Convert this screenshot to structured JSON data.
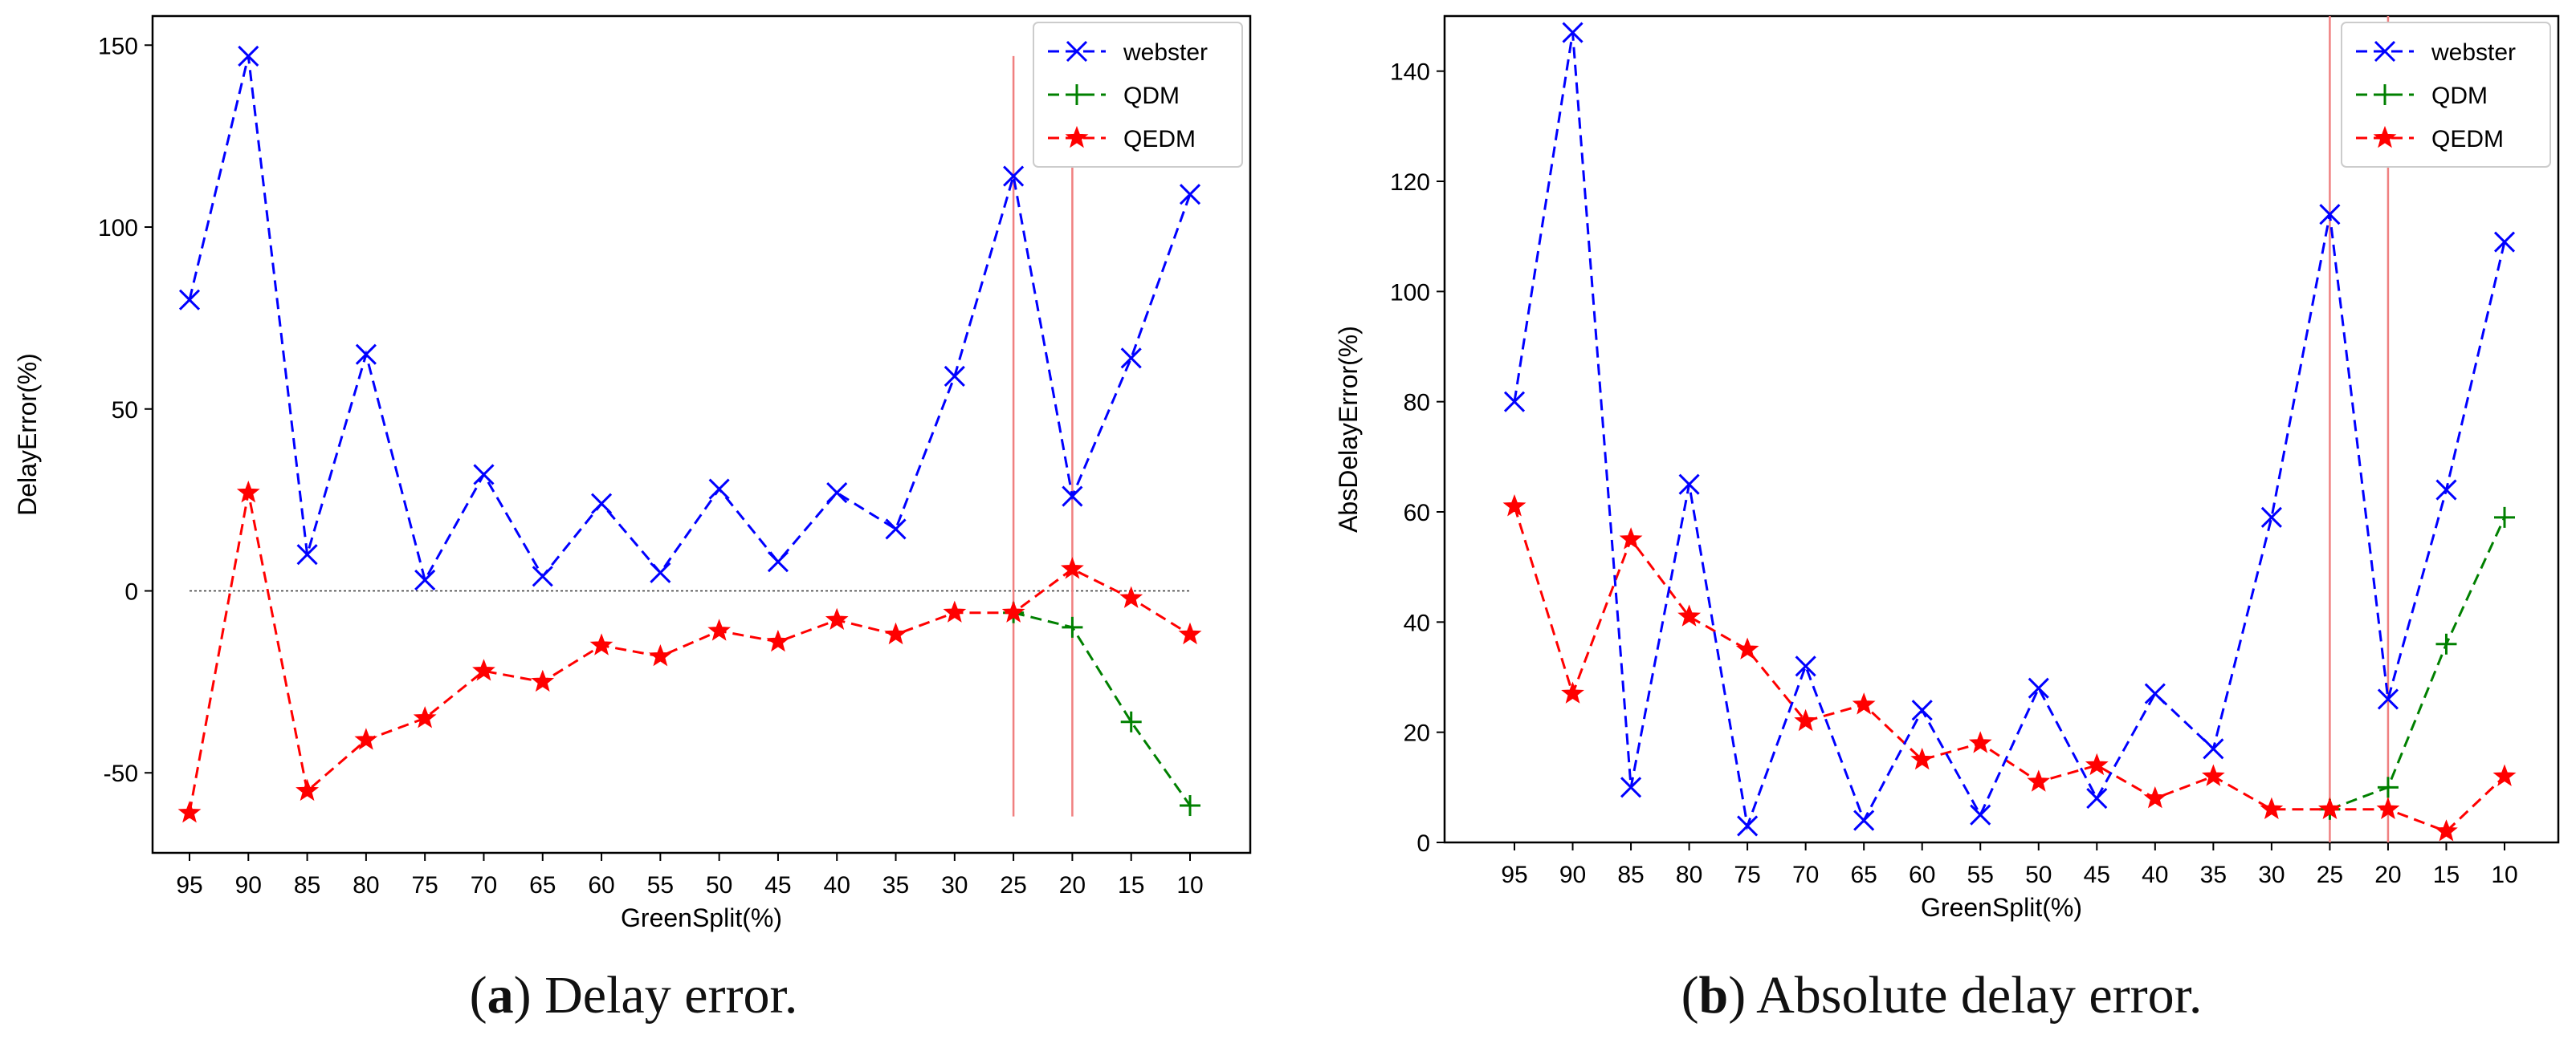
{
  "chart_data": [
    {
      "type": "line",
      "categories": [
        "95",
        "90",
        "85",
        "80",
        "75",
        "70",
        "65",
        "60",
        "55",
        "50",
        "45",
        "40",
        "35",
        "30",
        "25",
        "20",
        "15",
        "10"
      ],
      "xlabel": "GreenSplit(%)",
      "ylabel": "DelayError(%)",
      "ylim": [
        -72,
        158
      ],
      "yticks": [
        -50,
        0,
        50,
        100,
        150
      ],
      "reference_line": 0,
      "vertical_markers": [
        "25",
        "20"
      ],
      "legend_position": "top-right",
      "series": [
        {
          "name": "webster",
          "marker": "x",
          "color": "#0000ff",
          "values": [
            80,
            147,
            10,
            65,
            3,
            32,
            4,
            24,
            5,
            28,
            8,
            27,
            17,
            59,
            114,
            26,
            64,
            109
          ]
        },
        {
          "name": "QDM",
          "marker": "plus",
          "color": "#008000",
          "values": [
            null,
            null,
            null,
            null,
            null,
            null,
            null,
            null,
            null,
            null,
            null,
            null,
            null,
            null,
            -6,
            -10,
            -36,
            -59
          ]
        },
        {
          "name": "QEDM",
          "marker": "star",
          "color": "#ff0000",
          "values": [
            -61,
            27,
            -55,
            -41,
            -35,
            -22,
            -25,
            -15,
            -18,
            -11,
            -14,
            -8,
            -12,
            -6,
            -6,
            6,
            -2,
            -12
          ]
        }
      ]
    },
    {
      "type": "line",
      "categories": [
        "95",
        "90",
        "85",
        "80",
        "75",
        "70",
        "65",
        "60",
        "55",
        "50",
        "45",
        "40",
        "35",
        "30",
        "25",
        "20",
        "15",
        "10"
      ],
      "xlabel": "GreenSplit(%)",
      "ylabel": "AbsDelayError(%)",
      "ylim": [
        0,
        150
      ],
      "yticks": [
        0,
        20,
        40,
        60,
        80,
        100,
        120,
        140
      ],
      "vertical_markers": [
        "25",
        "20"
      ],
      "legend_position": "top-right",
      "series": [
        {
          "name": "webster",
          "marker": "x",
          "color": "#0000ff",
          "values": [
            80,
            147,
            10,
            65,
            3,
            32,
            4,
            24,
            5,
            28,
            8,
            27,
            17,
            59,
            114,
            26,
            64,
            109
          ]
        },
        {
          "name": "QDM",
          "marker": "plus",
          "color": "#008000",
          "values": [
            null,
            null,
            null,
            null,
            null,
            null,
            null,
            null,
            null,
            null,
            null,
            null,
            null,
            null,
            6,
            10,
            36,
            59
          ]
        },
        {
          "name": "QEDM",
          "marker": "star",
          "color": "#ff0000",
          "values": [
            61,
            27,
            55,
            41,
            35,
            22,
            25,
            15,
            18,
            11,
            14,
            8,
            12,
            6,
            6,
            6,
            2,
            12
          ]
        }
      ]
    }
  ],
  "captions": [
    {
      "label": "a",
      "text": " Delay error."
    },
    {
      "label": "b",
      "text": " Absolute delay error."
    }
  ]
}
